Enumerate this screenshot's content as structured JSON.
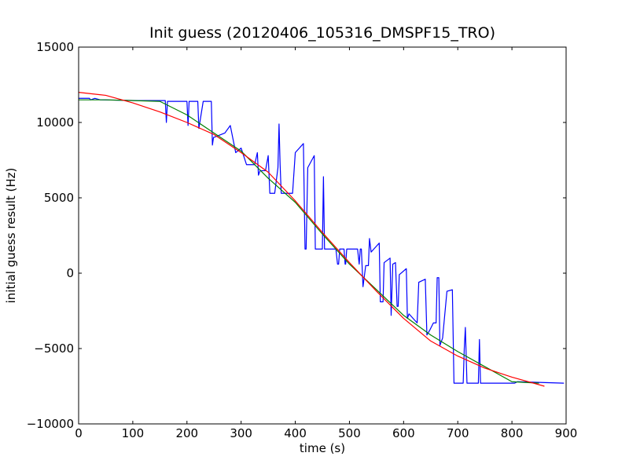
{
  "chart_data": {
    "type": "line",
    "title": "Init guess (20120406_105316_DMSPF15_TRO)",
    "xlabel": "time (s)",
    "ylabel": "initial guess result (Hz)",
    "xlim": [
      0,
      900
    ],
    "ylim": [
      -10000,
      15000
    ],
    "x_ticks": [
      0,
      100,
      200,
      300,
      400,
      500,
      600,
      700,
      800,
      900
    ],
    "y_ticks": [
      -10000,
      -5000,
      0,
      5000,
      10000,
      15000
    ],
    "x_tick_labels": [
      "0",
      "100",
      "200",
      "300",
      "400",
      "500",
      "600",
      "700",
      "800",
      "900"
    ],
    "y_tick_labels": [
      "−10000",
      "−5000",
      "0",
      "5000",
      "10000",
      "15000"
    ],
    "grid": false,
    "legend": "none",
    "series": [
      {
        "color": "#0000ff",
        "points": [
          [
            0,
            11600
          ],
          [
            20,
            11600
          ],
          [
            22,
            11500
          ],
          [
            30,
            11600
          ],
          [
            40,
            11500
          ],
          [
            110,
            11450
          ],
          [
            160,
            11450
          ],
          [
            162,
            10000
          ],
          [
            164,
            11400
          ],
          [
            200,
            11400
          ],
          [
            202,
            9800
          ],
          [
            204,
            11400
          ],
          [
            220,
            11400
          ],
          [
            222,
            9600
          ],
          [
            230,
            11400
          ],
          [
            245,
            11400
          ],
          [
            247,
            8500
          ],
          [
            249,
            9000
          ],
          [
            270,
            9300
          ],
          [
            280,
            9800
          ],
          [
            290,
            8000
          ],
          [
            300,
            8300
          ],
          [
            310,
            7200
          ],
          [
            325,
            7200
          ],
          [
            330,
            8000
          ],
          [
            332,
            6500
          ],
          [
            335,
            6800
          ],
          [
            345,
            6800
          ],
          [
            350,
            7800
          ],
          [
            353,
            5300
          ],
          [
            362,
            5300
          ],
          [
            368,
            7000
          ],
          [
            370,
            9900
          ],
          [
            372,
            7200
          ],
          [
            374,
            5300
          ],
          [
            395,
            5300
          ],
          [
            400,
            8000
          ],
          [
            415,
            8600
          ],
          [
            418,
            1600
          ],
          [
            420,
            1600
          ],
          [
            423,
            7000
          ],
          [
            435,
            7800
          ],
          [
            437,
            1600
          ],
          [
            450,
            1600
          ],
          [
            452,
            6400
          ],
          [
            454,
            1600
          ],
          [
            475,
            1600
          ],
          [
            478,
            600
          ],
          [
            480,
            600
          ],
          [
            482,
            1600
          ],
          [
            490,
            1600
          ],
          [
            492,
            600
          ],
          [
            493,
            600
          ],
          [
            495,
            1600
          ],
          [
            515,
            1600
          ],
          [
            518,
            600
          ],
          [
            520,
            1600
          ],
          [
            522,
            1600
          ],
          [
            525,
            -900
          ],
          [
            530,
            500
          ],
          [
            535,
            500
          ],
          [
            537,
            2300
          ],
          [
            540,
            1400
          ],
          [
            555,
            2000
          ],
          [
            557,
            -1900
          ],
          [
            562,
            -1900
          ],
          [
            564,
            700
          ],
          [
            575,
            1000
          ],
          [
            577,
            -2800
          ],
          [
            580,
            600
          ],
          [
            585,
            700
          ],
          [
            588,
            -2200
          ],
          [
            590,
            -2200
          ],
          [
            592,
            -100
          ],
          [
            605,
            300
          ],
          [
            607,
            -3000
          ],
          [
            610,
            -2700
          ],
          [
            625,
            -3300
          ],
          [
            628,
            -600
          ],
          [
            640,
            -400
          ],
          [
            643,
            -4100
          ],
          [
            648,
            -3800
          ],
          [
            655,
            -3300
          ],
          [
            660,
            -3300
          ],
          [
            662,
            -300
          ],
          [
            665,
            -300
          ],
          [
            667,
            -4800
          ],
          [
            672,
            -4300
          ],
          [
            680,
            -1200
          ],
          [
            690,
            -1100
          ],
          [
            693,
            -7300
          ],
          [
            710,
            -7300
          ],
          [
            712,
            -5000
          ],
          [
            714,
            -3600
          ],
          [
            717,
            -7300
          ],
          [
            738,
            -7300
          ],
          [
            740,
            -4400
          ],
          [
            742,
            -7300
          ],
          [
            800,
            -7300
          ],
          [
            805,
            -7300
          ],
          [
            810,
            -7200
          ],
          [
            896,
            -7300
          ]
        ]
      },
      {
        "color": "#008000",
        "points": [
          [
            0,
            11500
          ],
          [
            50,
            11500
          ],
          [
            100,
            11450
          ],
          [
            150,
            11400
          ],
          [
            200,
            10500
          ],
          [
            250,
            9300
          ],
          [
            300,
            8100
          ],
          [
            350,
            6300
          ],
          [
            400,
            4700
          ],
          [
            450,
            2600
          ],
          [
            500,
            600
          ],
          [
            550,
            -1100
          ],
          [
            600,
            -2800
          ],
          [
            650,
            -4100
          ],
          [
            700,
            -5200
          ],
          [
            750,
            -6200
          ],
          [
            800,
            -7200
          ],
          [
            850,
            -7300
          ]
        ]
      },
      {
        "color": "#ff0000",
        "points": [
          [
            0,
            12000
          ],
          [
            50,
            11800
          ],
          [
            100,
            11300
          ],
          [
            150,
            10700
          ],
          [
            200,
            10000
          ],
          [
            250,
            9200
          ],
          [
            300,
            8000
          ],
          [
            350,
            6700
          ],
          [
            400,
            4800
          ],
          [
            450,
            2700
          ],
          [
            500,
            700
          ],
          [
            550,
            -1200
          ],
          [
            600,
            -3000
          ],
          [
            650,
            -4500
          ],
          [
            700,
            -5500
          ],
          [
            750,
            -6300
          ],
          [
            800,
            -6900
          ],
          [
            860,
            -7500
          ]
        ]
      }
    ]
  }
}
